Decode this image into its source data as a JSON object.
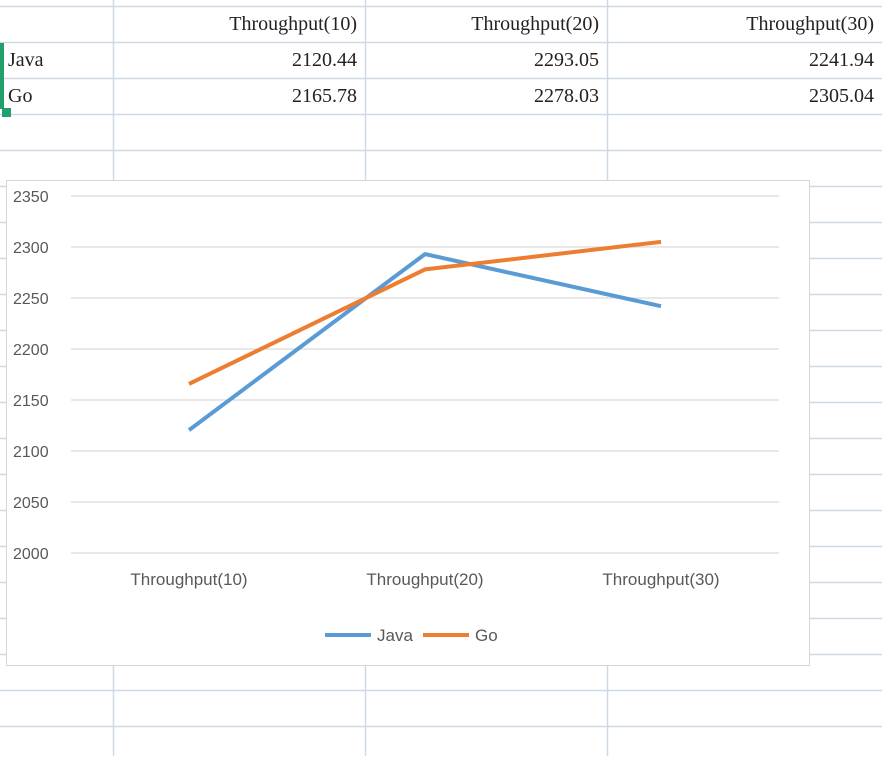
{
  "table": {
    "headers": [
      "",
      "Throughput(10)",
      "Throughput(20)",
      "Throughput(30)"
    ],
    "rows": [
      {
        "label": "Java",
        "values": [
          "2120.44",
          "2293.05",
          "2241.94"
        ]
      },
      {
        "label": "Go",
        "values": [
          "2165.78",
          "2278.03",
          "2305.04"
        ]
      }
    ]
  },
  "colors": {
    "grid": "#cfd9e6",
    "chart_gridline": "#d9d9d9",
    "java": "#5b9bd5",
    "go": "#ed7d31",
    "selection": "#22a06b"
  },
  "chart_data": {
    "type": "line",
    "categories": [
      "Throughput(10)",
      "Throughput(20)",
      "Throughput(30)"
    ],
    "series": [
      {
        "name": "Java",
        "values": [
          2120.44,
          2293.05,
          2241.94
        ],
        "color": "#5b9bd5"
      },
      {
        "name": "Go",
        "values": [
          2165.78,
          2278.03,
          2305.04
        ],
        "color": "#ed7d31"
      }
    ],
    "ylim": [
      2000,
      2350
    ],
    "yticks": [
      2000,
      2050,
      2100,
      2150,
      2200,
      2250,
      2300,
      2350
    ],
    "title": "",
    "xlabel": "",
    "ylabel": "",
    "grid": true,
    "legend": "bottom"
  }
}
